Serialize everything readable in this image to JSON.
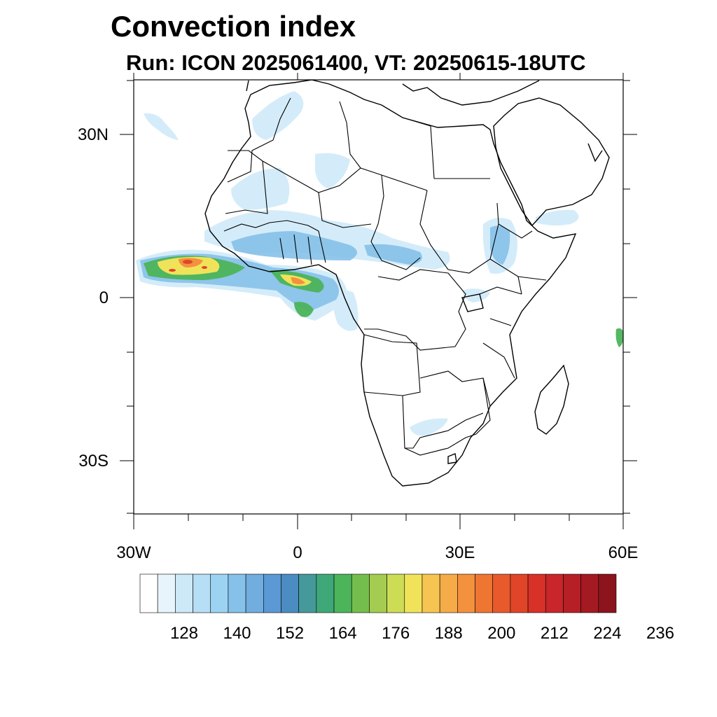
{
  "title": "Convection index",
  "subtitle": "Run: ICON 2025061400,  VT: 20250615-18UTC",
  "map": {
    "extent": {
      "lon": [
        -30,
        60
      ],
      "lat": [
        -40,
        40
      ]
    },
    "y_tick_labels": [
      "30N",
      "0",
      "30S"
    ],
    "x_tick_labels": [
      "30W",
      "0",
      "30E",
      "60E"
    ]
  },
  "colorbar": {
    "labels": [
      "128",
      "140",
      "152",
      "164",
      "176",
      "188",
      "200",
      "212",
      "224",
      "236"
    ],
    "colors": [
      "#ffffff",
      "#e8f4fb",
      "#cde9f8",
      "#b6def5",
      "#9dd3f2",
      "#86c1e9",
      "#71addf",
      "#5a99d4",
      "#4b8cc2",
      "#45999a",
      "#3fa878",
      "#4cb45a",
      "#74be4e",
      "#a4cc50",
      "#cddc55",
      "#f0e35a",
      "#f6c551",
      "#f5ab47",
      "#f3913e",
      "#ef7533",
      "#e85a2b",
      "#e04529",
      "#d73128",
      "#c8262a",
      "#b71f27",
      "#a31a22",
      "#8c141c"
    ]
  },
  "colors": {
    "coast": "#000000",
    "light_blue": "#b6def5",
    "mid_blue": "#71addf",
    "green": "#3fa878",
    "yellow": "#f0e35a",
    "orange": "#f3913e",
    "red": "#e04529"
  }
}
